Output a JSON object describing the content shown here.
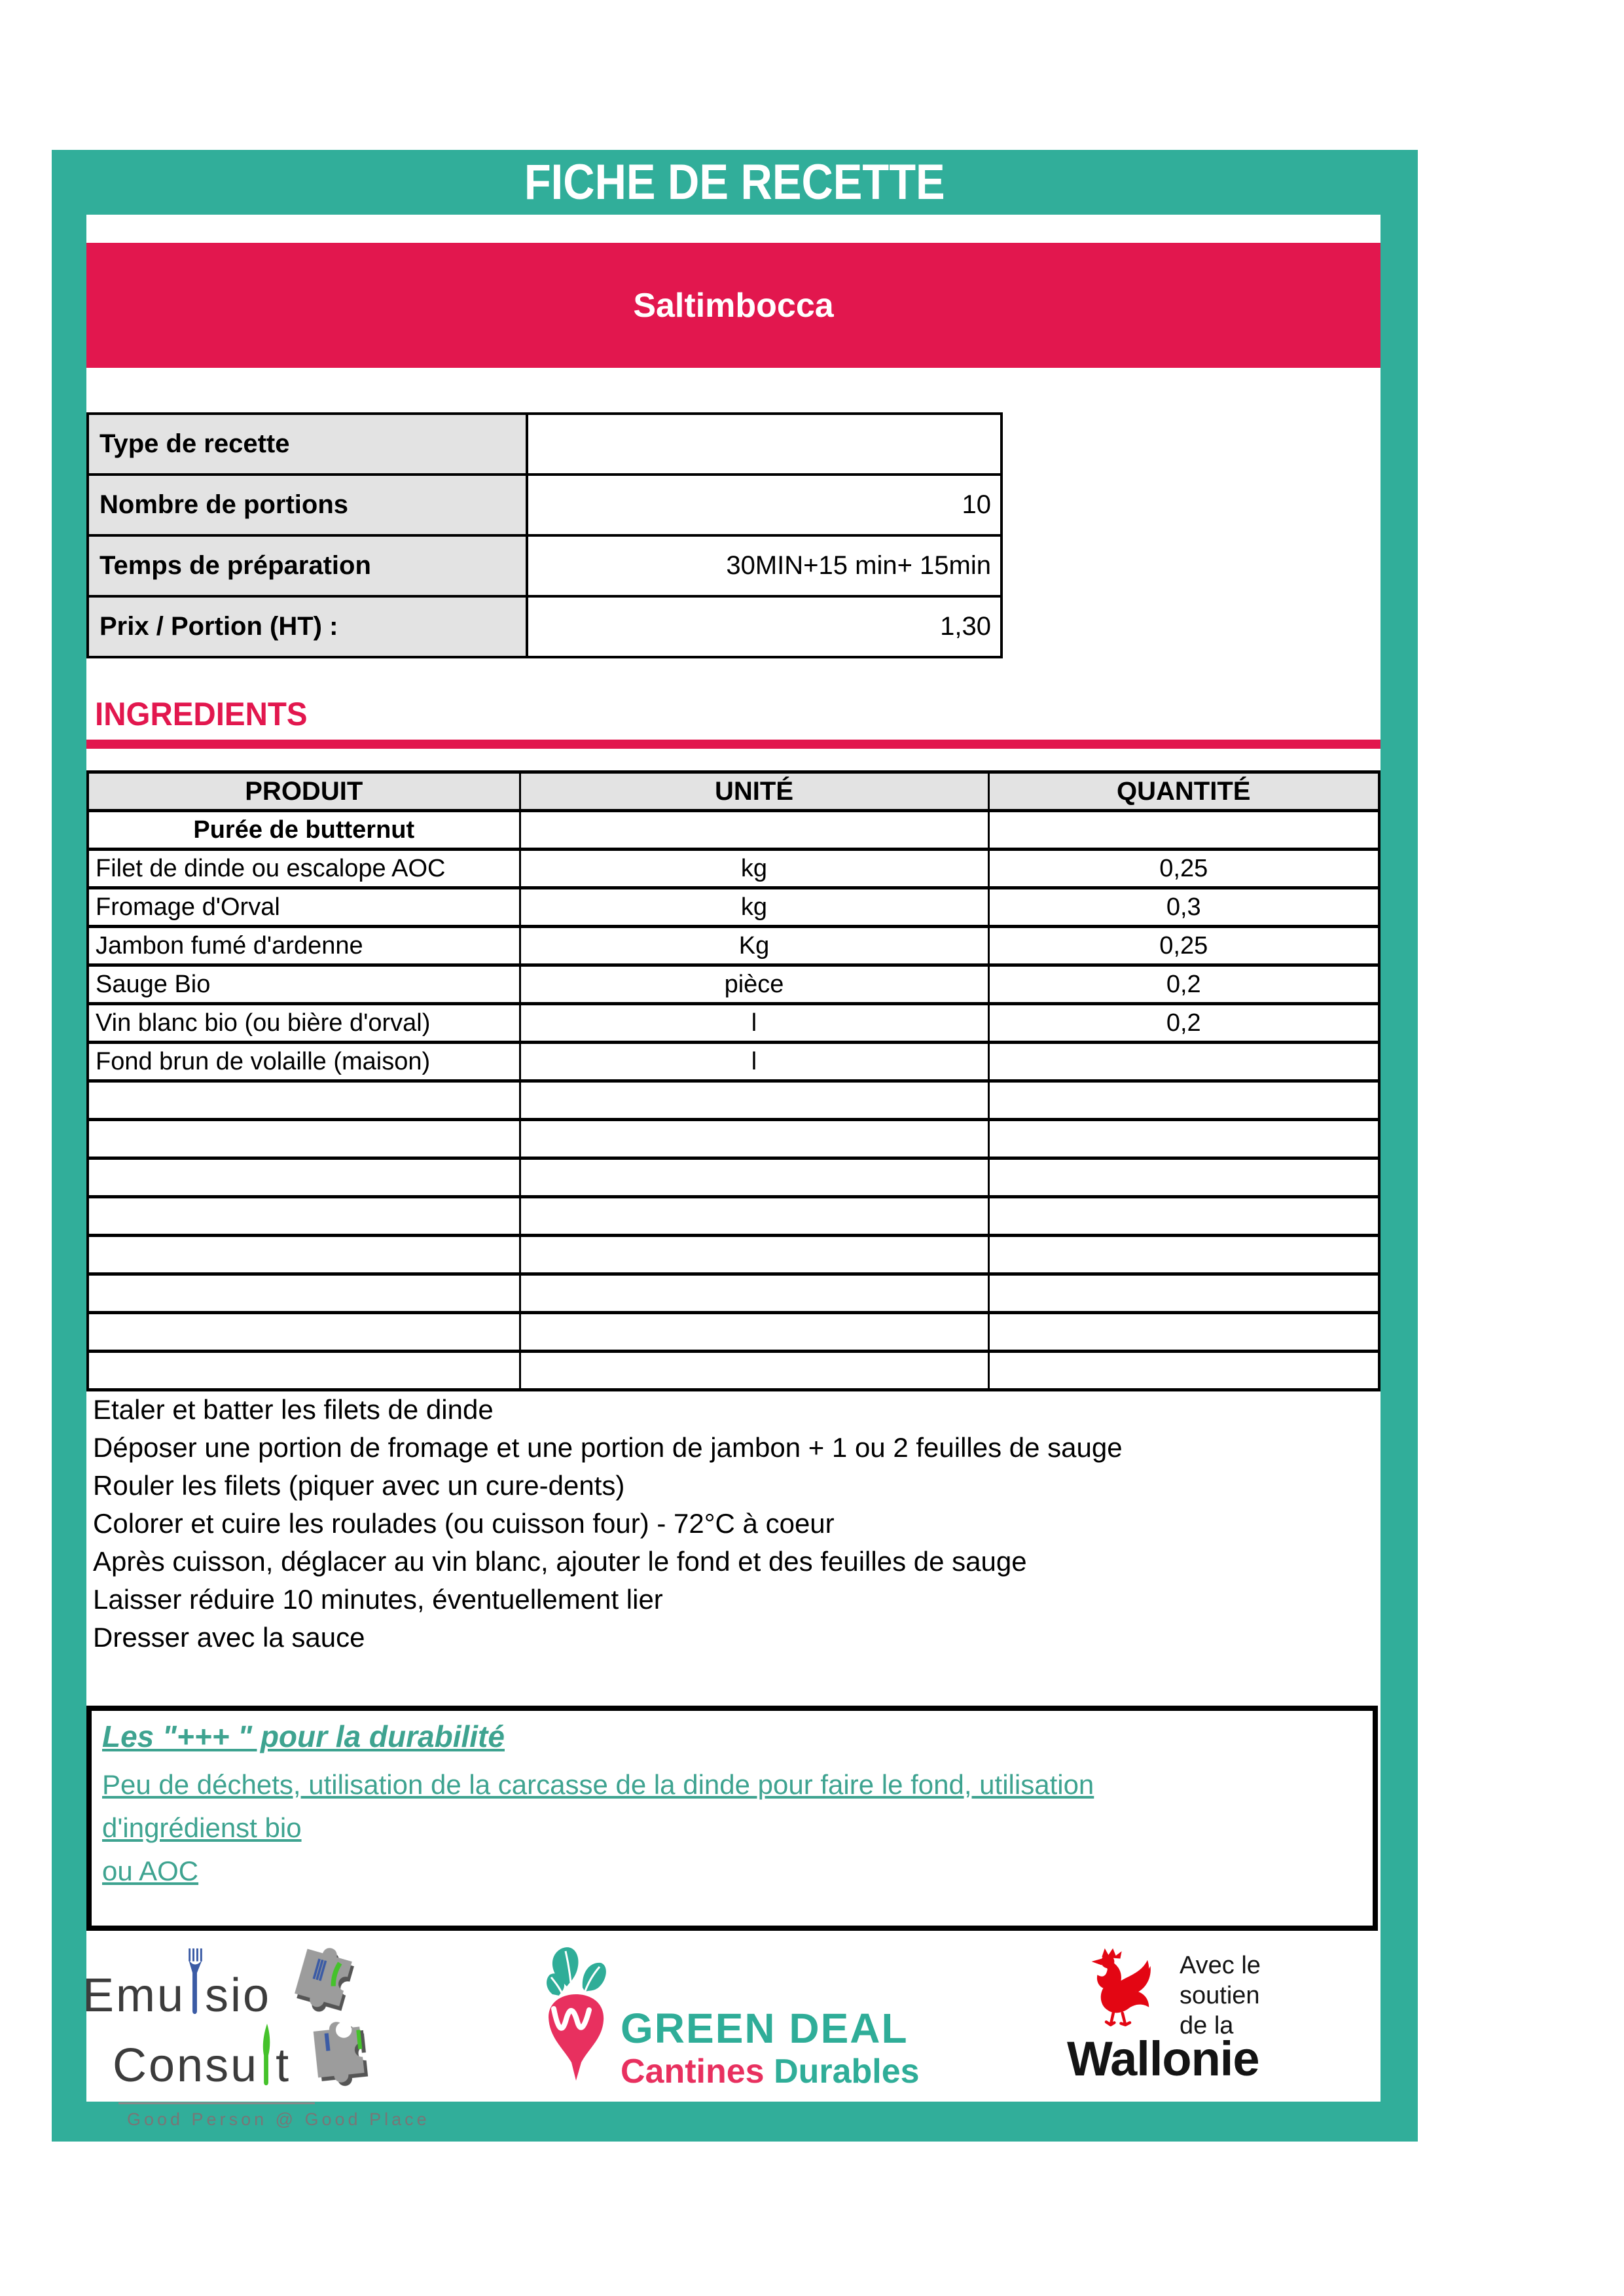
{
  "page": {
    "title": "FICHE DE RECETTE",
    "recipe_name": "Saltimbocca"
  },
  "colors": {
    "frame_teal": "#31AE9A",
    "accent_pink": "#E2174E",
    "cell_gray": "#E3E3E3",
    "durability_text_teal": "#3EA390",
    "wallonie_red": "#E30613",
    "emulsio_blue": "#3B5BA5",
    "emulsio_green": "#45C22B",
    "greendeal_teal": "#2FAD98",
    "greendeal_pink": "#E8305F"
  },
  "info_table": {
    "rows": [
      {
        "label": "Type de recette",
        "value": ""
      },
      {
        "label": "Nombre de portions",
        "value": "10"
      },
      {
        "label": "Temps de préparation",
        "value": "30MIN+15 min+ 15min"
      },
      {
        "label": "Prix  / Portion (HT) :",
        "value": "1,30"
      }
    ]
  },
  "ingredients": {
    "section_title": "INGREDIENTS",
    "headers": [
      "PRODUIT",
      "UNITÉ",
      "QUANTITÉ"
    ],
    "rows": [
      {
        "produit": "Purée de butternut",
        "unite": "",
        "quantite": ""
      },
      {
        "produit": "Filet de dinde ou escalope AOC",
        "unite": "kg",
        "quantite": "0,25"
      },
      {
        "produit": "Fromage d'Orval",
        "unite": "kg",
        "quantite": "0,3"
      },
      {
        "produit": "Jambon fumé d'ardenne",
        "unite": "Kg",
        "quantite": "0,25"
      },
      {
        "produit": "Sauge Bio",
        "unite": "pièce",
        "quantite": "0,2"
      },
      {
        "produit": "Vin blanc bio (ou bière d'orval)",
        "unite": "l",
        "quantite": "0,2"
      },
      {
        "produit": "Fond brun de volaille (maison)",
        "unite": "l",
        "quantite": ""
      }
    ],
    "empty_row_count": 8
  },
  "instructions": {
    "lines": [
      "Etaler et batter les filets de dinde",
      "Déposer une portion de fromage et une portion de jambon + 1 ou 2 feuilles de sauge",
      "Rouler les filets (piquer avec un cure-dents)",
      "Colorer et cuire les roulades (ou cuisson four) - 72°C à coeur",
      "Après cuisson, déglacer au vin blanc, ajouter le fond et des feuilles de sauge",
      "Laisser réduire 10 minutes, éventuellement lier",
      "Dresser avec la sauce"
    ]
  },
  "durability": {
    "title": "Les \"+++ \" pour la durabilité",
    "lines": [
      " Peu de déchets, utilisation de la carcasse de la dinde pour faire le fond, utilisation ",
      "d'ingrédienst bio",
      "ou AOC"
    ]
  },
  "footer": {
    "emulsio": {
      "word1_pre": "Emu",
      "word1_post": "sio",
      "word2_pre": "Consu",
      "word2_post": "t",
      "tagline": "Good Person @ Good Place"
    },
    "greendeal": {
      "title": "GREEN DEAL",
      "subtitle_pink": "Cantines",
      "subtitle_teal": "Durables"
    },
    "wallonie": {
      "line1": "Avec le",
      "line2": "soutien",
      "line3": "de la",
      "name": "Wallonie"
    }
  }
}
